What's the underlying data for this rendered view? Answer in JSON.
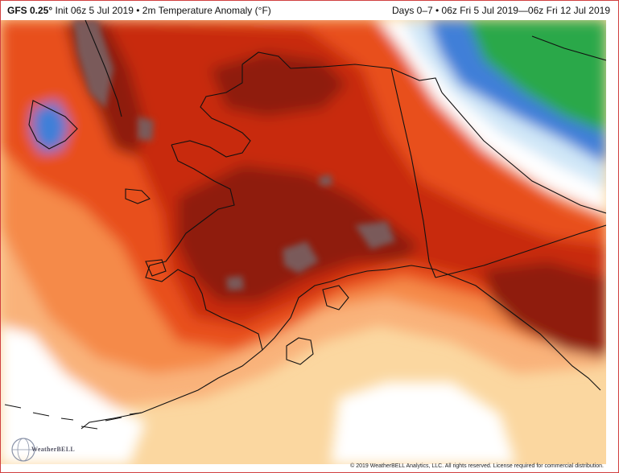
{
  "header": {
    "model": "GFS 0.25°",
    "init": "Init 06z 5 Jul 2019",
    "separator": "•",
    "field": "2m Temperature Anomaly (°F)",
    "valid": "Days 0–7 • 06z Fri 5 Jul 2019—06z Fri 12 Jul 2019"
  },
  "map": {
    "region": "Alaska",
    "colors": {
      "extreme": "#7a5a5a",
      "dark_red": "#8f1a0a",
      "red": "#c82a10",
      "orange_red": "#e8501e",
      "orange": "#f58a4a",
      "light_orange": "#f9b27a",
      "tan": "#fbd7a0",
      "white": "#ffffff",
      "light_blue": "#cfe6f7",
      "blue": "#3f7fd8",
      "green": "#2ca84a",
      "coast": "#111111"
    }
  },
  "footer": {
    "logo": "WeatherBELL",
    "copyright": "© 2019 WeatherBELL Analytics, LLC. All rights reserved. License required for commercial distribution."
  }
}
